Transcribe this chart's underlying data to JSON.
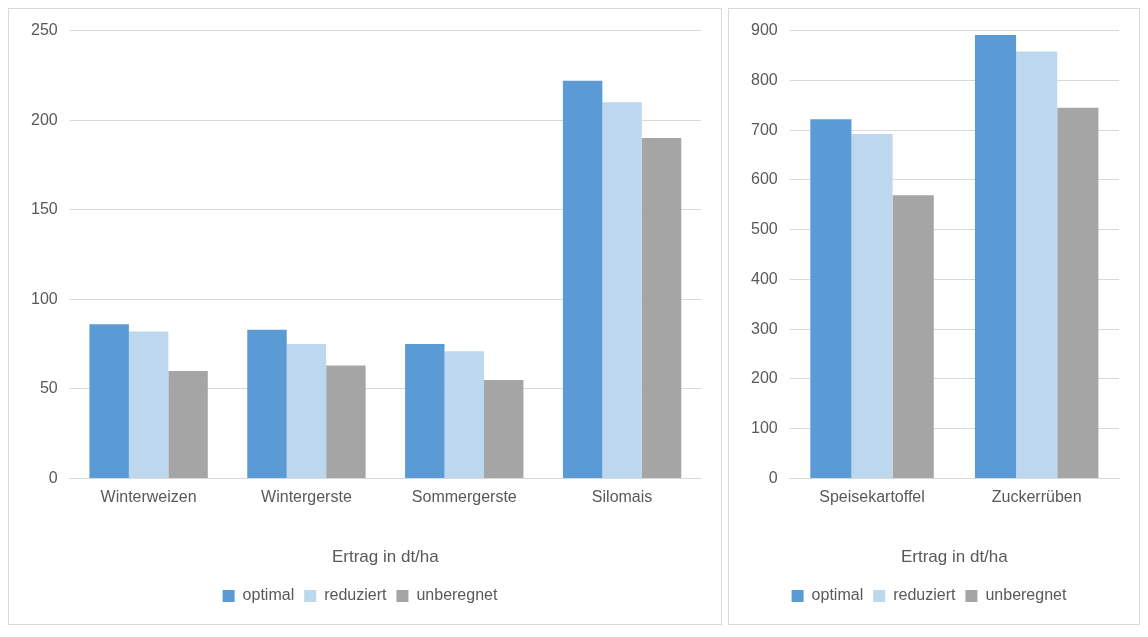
{
  "chart_data": [
    {
      "type": "bar",
      "categories": [
        "Winterweizen",
        "Wintergerste",
        "Sommergerste",
        "Silomais"
      ],
      "xlabel": "Ertrag in dt/ha",
      "ylim": [
        0,
        250
      ],
      "yticks": [
        0,
        50,
        100,
        150,
        200,
        250
      ],
      "grid": "y",
      "legend": "bottom",
      "series": [
        {
          "name": "optimal",
          "color": "#5b9bd5",
          "values": [
            86,
            83,
            75,
            222
          ]
        },
        {
          "name": "reduziert",
          "color": "#bdd7ee",
          "values": [
            82,
            75,
            71,
            210
          ]
        },
        {
          "name": "unberegnet",
          "color": "#a5a5a5",
          "values": [
            60,
            63,
            55,
            190
          ]
        }
      ]
    },
    {
      "type": "bar",
      "categories": [
        "Speisekartoffel",
        "Zuckerrüben"
      ],
      "xlabel": "Ertrag in dt/ha",
      "ylim": [
        0,
        900
      ],
      "yticks": [
        0,
        100,
        200,
        300,
        400,
        500,
        600,
        700,
        800,
        900
      ],
      "grid": "y",
      "legend": "bottom",
      "series": [
        {
          "name": "optimal",
          "color": "#5b9bd5",
          "values": [
            722,
            891
          ]
        },
        {
          "name": "reduziert",
          "color": "#bdd7ee",
          "values": [
            692,
            858
          ]
        },
        {
          "name": "unberegnet",
          "color": "#a5a5a5",
          "values": [
            569,
            745
          ]
        }
      ]
    }
  ]
}
